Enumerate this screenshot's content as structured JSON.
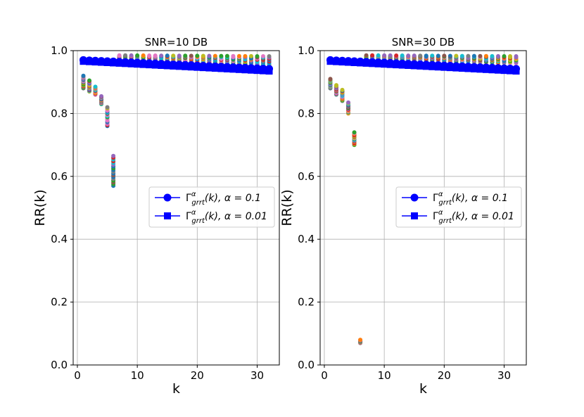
{
  "palette": [
    "#1f77b4",
    "#ff7f0e",
    "#2ca02c",
    "#d62728",
    "#9467bd",
    "#8c564b",
    "#e377c2",
    "#7f7f7f",
    "#bcbd22",
    "#17becf"
  ],
  "legend_line_color": "#0000ff",
  "chart_data": [
    {
      "type": "scatter",
      "title": "SNR=10 DB",
      "xlabel": "k",
      "ylabel": "RR(k)",
      "xlim": [
        -0.7,
        33.7
      ],
      "ylim": [
        0.0,
        1.0
      ],
      "xticks": [
        0,
        10,
        20,
        30
      ],
      "yticks": [
        0.0,
        0.2,
        0.4,
        0.6,
        0.8,
        1.0
      ],
      "ytick_labels": [
        "0.0",
        "0.2",
        "0.4",
        "0.6",
        "0.8",
        "1.0"
      ],
      "grid": true,
      "legend_position": "center-right",
      "legend": [
        {
          "label_base": "Γ",
          "sup": "α",
          "sub": "grrt",
          "tail": "(k), α = 0.1",
          "marker": "circle"
        },
        {
          "label_base": "Γ",
          "sup": "α",
          "sub": "grrt",
          "tail": "(k), α = 0.01",
          "marker": "square"
        }
      ],
      "trials_lower_region": {
        "k": [
          1,
          2,
          3,
          4,
          5,
          6
        ],
        "min": [
          0.88,
          0.87,
          0.86,
          0.83,
          0.76,
          0.57
        ],
        "max": [
          0.92,
          0.905,
          0.885,
          0.855,
          0.82,
          0.665
        ]
      },
      "trials_upper_region": {
        "k_start": 7,
        "k_end": 32,
        "min_start": 0.975,
        "min_end": 0.955,
        "max_start": 0.985,
        "max_end": 0.982
      },
      "series": [
        {
          "name": "",
          "marker": "circle",
          "k_start": 1,
          "k_end": 32,
          "y_start": 0.97,
          "y_end": 0.942
        },
        {
          "name": "",
          "marker": "square",
          "k_start": 1,
          "k_end": 32,
          "y_start": 0.966,
          "y_end": 0.935
        }
      ]
    },
    {
      "type": "scatter",
      "title": "SNR=30 DB",
      "xlabel": "k",
      "ylabel": "RR(k)",
      "xlim": [
        -0.7,
        33.7
      ],
      "ylim": [
        0.0,
        1.0
      ],
      "xticks": [
        0,
        10,
        20,
        30
      ],
      "yticks": [
        0.0,
        0.2,
        0.4,
        0.6,
        0.8,
        1.0
      ],
      "ytick_labels": [
        "0.0",
        "0.2",
        "0.4",
        "0.6",
        "0.8",
        "1.0"
      ],
      "grid": true,
      "legend_position": "center-right",
      "legend": [
        {
          "label_base": "Γ",
          "sup": "α",
          "sub": "grrt",
          "tail": "(k), α = 0.1",
          "marker": "circle"
        },
        {
          "label_base": "Γ",
          "sup": "α",
          "sub": "grrt",
          "tail": "(k), α = 0.01",
          "marker": "square"
        }
      ],
      "trials_lower_region": {
        "k": [
          1,
          2,
          3,
          4,
          5,
          6
        ],
        "min": [
          0.88,
          0.86,
          0.84,
          0.8,
          0.7,
          0.07
        ],
        "max": [
          0.91,
          0.89,
          0.875,
          0.835,
          0.74,
          0.08
        ]
      },
      "trials_upper_region": {
        "k_start": 7,
        "k_end": 32,
        "min_start": 0.975,
        "min_end": 0.96,
        "max_start": 0.985,
        "max_end": 0.982
      },
      "series": [
        {
          "name": "",
          "marker": "circle",
          "k_start": 1,
          "k_end": 32,
          "y_start": 0.97,
          "y_end": 0.942
        },
        {
          "name": "",
          "marker": "square",
          "k_start": 1,
          "k_end": 32,
          "y_start": 0.966,
          "y_end": 0.935
        }
      ]
    }
  ]
}
